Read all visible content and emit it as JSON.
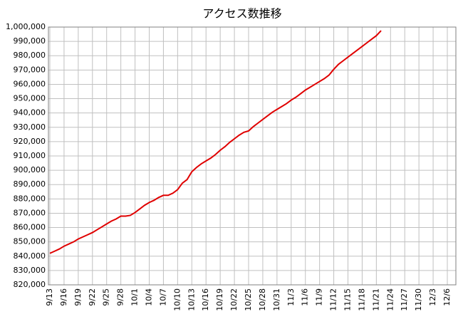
{
  "chart_data": {
    "type": "line",
    "title": "アクセス数推移",
    "categories": [
      "9/13",
      null,
      null,
      "9/16",
      null,
      null,
      "9/19",
      null,
      null,
      "9/22",
      null,
      null,
      "9/25",
      null,
      null,
      "9/28",
      null,
      null,
      "10/1",
      null,
      null,
      "10/4",
      null,
      null,
      "10/7",
      null,
      null,
      "10/10",
      null,
      null,
      "10/13",
      null,
      null,
      "10/16",
      null,
      null,
      "10/19",
      null,
      null,
      "10/22",
      null,
      null,
      "10/25",
      null,
      null,
      "10/28",
      null,
      null,
      "10/31",
      null,
      null,
      "11/3",
      null,
      null,
      "11/6",
      null,
      null,
      "11/9",
      null,
      null,
      "11/12",
      null,
      null,
      "11/15",
      null,
      null,
      "11/18",
      null,
      null,
      "11/21",
      null,
      null,
      "11/24",
      null,
      null,
      "11/27",
      null,
      null,
      "11/30",
      null,
      null,
      "12/3",
      null,
      null,
      "12/6"
    ],
    "series": [
      {
        "color": "#e00000",
        "values": [
          842000,
          843500,
          845000,
          847000,
          848500,
          850000,
          852000,
          853500,
          855000,
          856500,
          858500,
          860500,
          862500,
          864500,
          866000,
          868000,
          868000,
          868500,
          870500,
          873000,
          875500,
          877500,
          879000,
          881000,
          882500,
          882500,
          884000,
          886500,
          891000,
          893500,
          899000,
          902000,
          904500,
          906500,
          908500,
          911000,
          914000,
          916500,
          919500,
          922000,
          924500,
          926500,
          927500,
          930500,
          933000,
          935500,
          938000,
          940500,
          942500,
          944500,
          946500,
          949000,
          951000,
          953500,
          956000,
          958000,
          960000,
          962000,
          964000,
          966500,
          970500,
          974000,
          976500,
          979000,
          981500,
          984000,
          986500,
          989000,
          991500,
          994000,
          997500,
          null,
          null,
          null,
          null,
          null,
          null,
          null,
          null,
          null,
          null,
          null,
          null,
          null,
          null
        ]
      }
    ],
    "ylim": [
      820000,
      1000000
    ],
    "yticks": [
      {
        "value": 820000,
        "label": "820,000"
      },
      {
        "value": 830000,
        "label": "830,000"
      },
      {
        "value": 840000,
        "label": "840,000"
      },
      {
        "value": 850000,
        "label": "850,000"
      },
      {
        "value": 860000,
        "label": "860,000"
      },
      {
        "value": 870000,
        "label": "870,000"
      },
      {
        "value": 880000,
        "label": "880,000"
      },
      {
        "value": 890000,
        "label": "890,000"
      },
      {
        "value": 900000,
        "label": "900,000"
      },
      {
        "value": 910000,
        "label": "910,000"
      },
      {
        "value": 920000,
        "label": "920,000"
      },
      {
        "value": 930000,
        "label": "930,000"
      },
      {
        "value": 940000,
        "label": "940,000"
      },
      {
        "value": 950000,
        "label": "950,000"
      },
      {
        "value": 960000,
        "label": "960,000"
      },
      {
        "value": 970000,
        "label": "970,000"
      },
      {
        "value": 980000,
        "label": "980,000"
      },
      {
        "value": 990000,
        "label": "990,000"
      },
      {
        "value": 1000000,
        "label": "1,000,000"
      }
    ],
    "grid": true
  }
}
